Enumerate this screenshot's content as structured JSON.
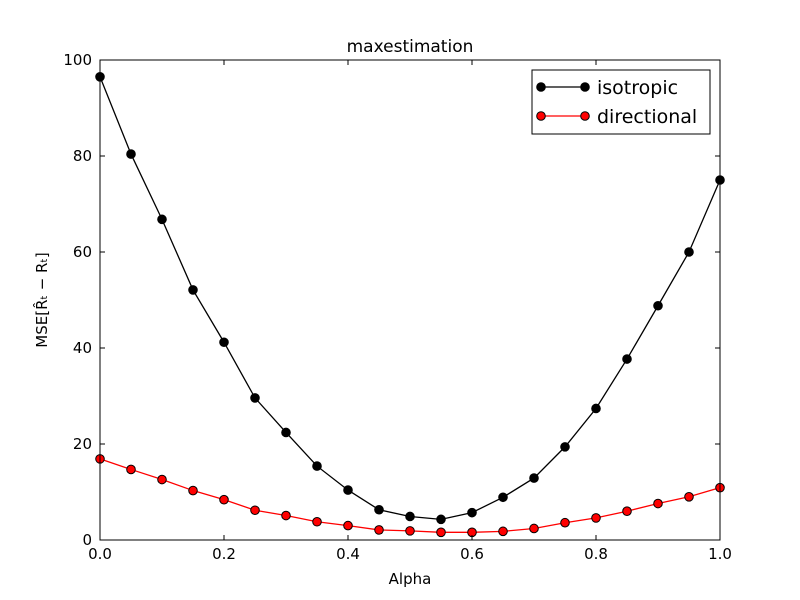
{
  "chart_data": {
    "type": "line",
    "title": "maxestimation",
    "xlabel": "Alpha",
    "ylabel": "MSE[R̂ₜ − Rₜ]",
    "xlim": [
      0.0,
      1.0
    ],
    "ylim": [
      0,
      100
    ],
    "xticks": [
      "0.0",
      "0.2",
      "0.4",
      "0.6",
      "0.8",
      "1.0"
    ],
    "yticks": [
      "0",
      "20",
      "40",
      "60",
      "80",
      "100"
    ],
    "grid": false,
    "legend_position": "top-right",
    "x": [
      0.0,
      0.05,
      0.1,
      0.15,
      0.2,
      0.25,
      0.3,
      0.35,
      0.4,
      0.45,
      0.5,
      0.55,
      0.6,
      0.65,
      0.7,
      0.75,
      0.8,
      0.85,
      0.9,
      0.95,
      1.0
    ],
    "series": [
      {
        "name": "isotropic",
        "color": "#000000",
        "marker_color": "#000000",
        "values": [
          96.5,
          80.4,
          66.8,
          52.1,
          41.2,
          29.6,
          22.4,
          15.4,
          10.4,
          6.3,
          4.9,
          4.3,
          5.7,
          8.9,
          12.9,
          19.4,
          27.4,
          37.7,
          48.8,
          60.0,
          75.0
        ]
      },
      {
        "name": "directional",
        "color": "#ff0000",
        "marker_color": "#ff0000",
        "values": [
          16.9,
          14.7,
          12.6,
          10.3,
          8.4,
          6.2,
          5.1,
          3.8,
          3.0,
          2.1,
          1.9,
          1.6,
          1.6,
          1.8,
          2.4,
          3.6,
          4.6,
          6.0,
          7.6,
          9.0,
          10.9
        ]
      }
    ]
  }
}
